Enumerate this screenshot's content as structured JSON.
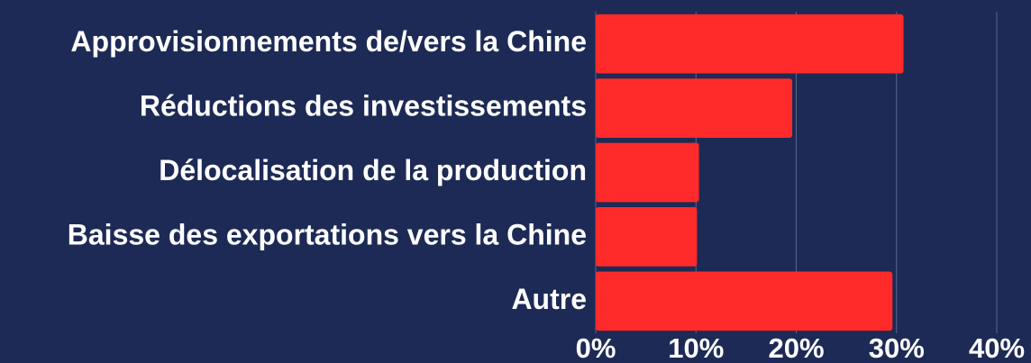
{
  "chart_data": {
    "type": "bar",
    "orientation": "horizontal",
    "categories": [
      "Approvisionnements de/vers la Chine",
      "Réductions des investissements",
      "Délocalisation de la production",
      "Baisse des exportations vers la Chine",
      "Autre"
    ],
    "values": [
      30.7,
      19.6,
      10.3,
      10.1,
      29.6
    ],
    "color": "#ff2a2a",
    "xlim": [
      0,
      40
    ],
    "xticks": [
      {
        "value": 0,
        "label": "0%"
      },
      {
        "value": 10,
        "label": "10%"
      },
      {
        "value": 20,
        "label": "20%"
      },
      {
        "value": 30,
        "label": "30%"
      },
      {
        "value": 40,
        "label": "40%"
      }
    ],
    "grid": true
  }
}
